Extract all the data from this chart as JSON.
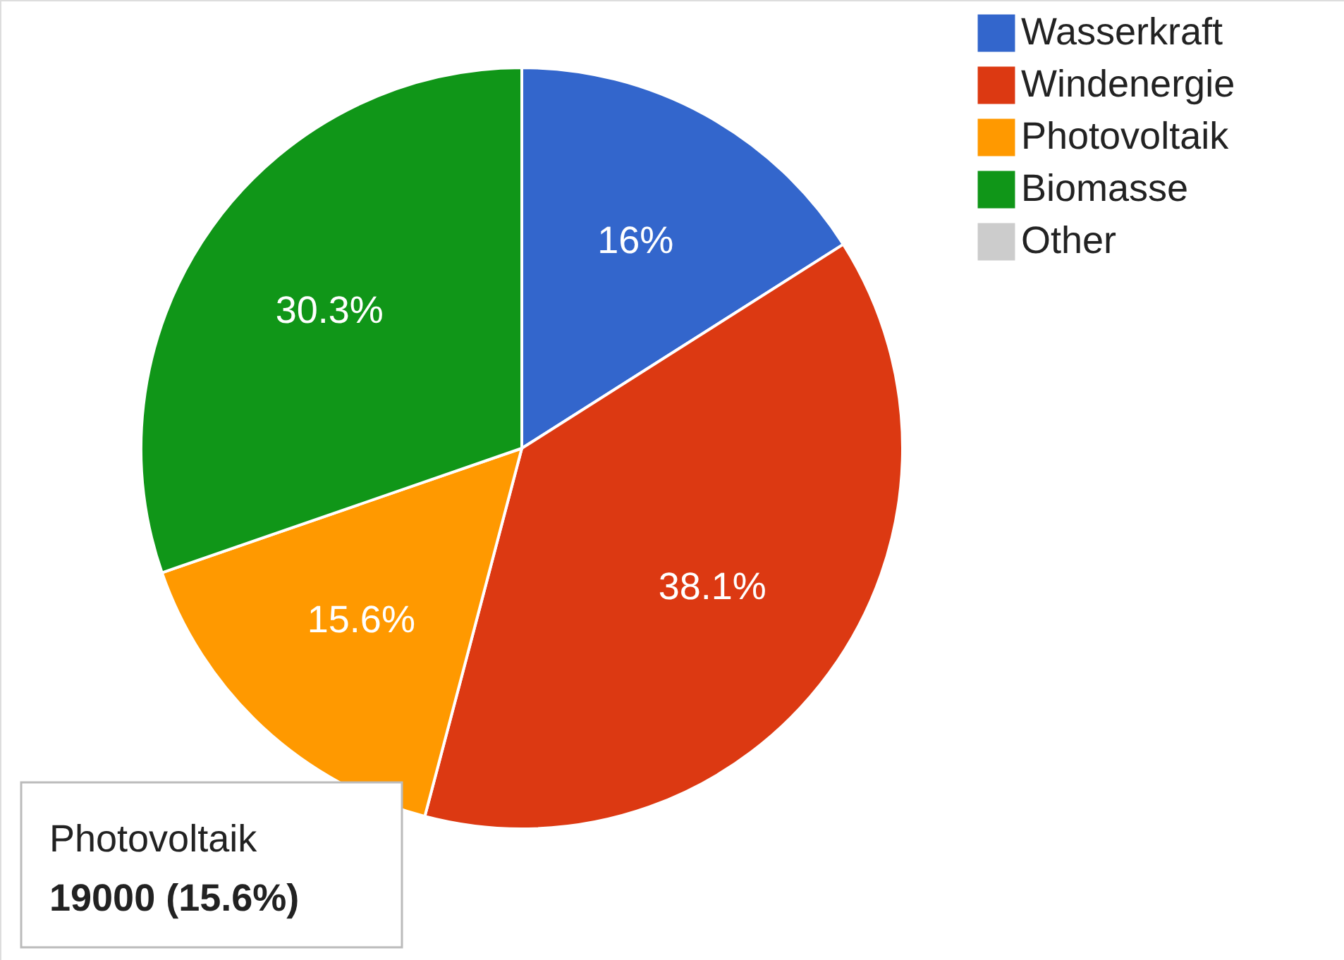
{
  "chart_data": {
    "type": "pie",
    "categories": [
      "Wasserkraft",
      "Windenergie",
      "Photovoltaik",
      "Biomasse",
      "Other"
    ],
    "values": [
      16,
      38.1,
      15.6,
      30.3,
      0
    ],
    "colors": [
      "#3366cc",
      "#dc3912",
      "#ff9900",
      "#109618",
      "#cccccc"
    ],
    "value_labels": [
      "16%",
      "38.1%",
      "15.6%",
      "30.3%",
      null
    ],
    "legend": "top right",
    "annotations": [
      "Photovoltaik",
      "19000 (15.6%)"
    ]
  }
}
